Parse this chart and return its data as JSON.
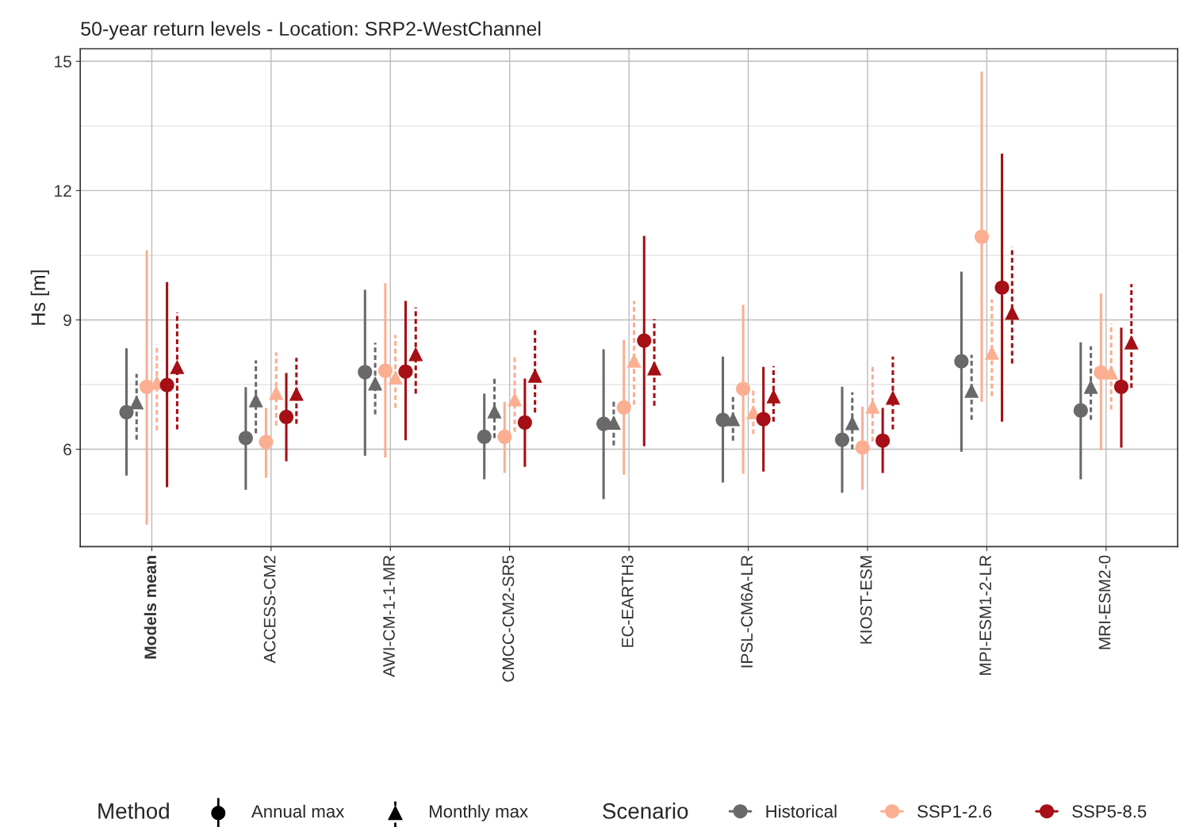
{
  "chart_data": {
    "type": "scatter",
    "title": "50-year return levels - Location: SRP2-WestChannel",
    "ylabel": "Hs [m]",
    "categories": [
      "Models mean",
      "ACCESS-CM2",
      "AWI-CM-1-1-MR",
      "CMCC-CM2-SR5",
      "EC-EARTH3",
      "IPSL-CM6A-LR",
      "KIOST-ESM",
      "MPI-ESM1-2-LR",
      "MRI-ESM2-0"
    ],
    "ylim": [
      3.74,
      15.29
    ],
    "yticks": [
      6,
      9,
      12,
      15
    ],
    "grid": true,
    "legend": "bottom",
    "annotations": [
      "Method",
      "Annual max",
      "Monthly max"
    ],
    "legend_title": "Scenario",
    "series": [
      {
        "name": "Historical",
        "color": "#696969",
        "marker": "circle",
        "line_style": "solid",
        "values": [
          6.86,
          6.26,
          7.79,
          6.29,
          6.59,
          6.68,
          6.22,
          8.04,
          6.9
        ],
        "errors": [
          [
            5.39,
            8.34
          ],
          [
            5.06,
            7.44
          ],
          [
            5.85,
            9.7
          ],
          [
            5.3,
            7.29
          ],
          [
            4.84,
            8.32
          ],
          [
            5.23,
            8.15
          ],
          [
            4.99,
            7.45
          ],
          [
            5.94,
            10.12
          ],
          [
            5.3,
            8.48
          ]
        ]
      },
      {
        "color": "#696969",
        "marker": "triangle",
        "line_style": "dashed",
        "values": [
          7.09,
          7.14,
          7.53,
          6.88,
          6.62,
          6.7,
          6.61,
          7.36,
          7.45
        ],
        "errors": [
          [
            6.22,
            7.75
          ],
          [
            6.37,
            8.06
          ],
          [
            6.81,
            8.47
          ],
          [
            6.26,
            7.66
          ],
          [
            6.09,
            7.16
          ],
          [
            6.2,
            7.27
          ],
          [
            6.0,
            7.32
          ],
          [
            6.68,
            8.19
          ],
          [
            6.68,
            8.39
          ]
        ]
      },
      {
        "name": "SSP1-2.6",
        "color": "#fcae91",
        "marker": "circle",
        "line_style": "solid",
        "values": [
          7.45,
          6.17,
          7.82,
          6.29,
          6.97,
          7.4,
          6.04,
          10.93,
          7.78
        ],
        "errors": [
          [
            4.25,
            10.62
          ],
          [
            5.34,
            6.96
          ],
          [
            5.81,
            9.85
          ],
          [
            5.45,
            7.1
          ],
          [
            5.41,
            8.54
          ],
          [
            5.43,
            9.35
          ],
          [
            5.06,
            6.99
          ],
          [
            7.1,
            14.76
          ],
          [
            5.98,
            9.61
          ]
        ]
      },
      {
        "color": "#fcae91",
        "marker": "triangle",
        "line_style": "dashed",
        "values": [
          7.55,
          7.31,
          7.67,
          7.16,
          8.06,
          6.86,
          6.99,
          8.24,
          7.78
        ],
        "errors": [
          [
            6.44,
            8.43
          ],
          [
            6.55,
            8.25
          ],
          [
            6.96,
            8.65
          ],
          [
            6.4,
            8.15
          ],
          [
            7.03,
            9.44
          ],
          [
            6.35,
            7.38
          ],
          [
            6.18,
            7.95
          ],
          [
            7.23,
            9.48
          ],
          [
            6.92,
            8.91
          ]
        ]
      },
      {
        "name": "SSP5-8.5",
        "color": "#a50f15",
        "marker": "circle",
        "line_style": "solid",
        "values": [
          7.49,
          6.75,
          7.8,
          6.62,
          8.52,
          6.7,
          6.2,
          9.75,
          7.45
        ],
        "errors": [
          [
            5.12,
            9.88
          ],
          [
            5.72,
            7.77
          ],
          [
            6.21,
            9.44
          ],
          [
            5.59,
            7.64
          ],
          [
            6.07,
            10.95
          ],
          [
            5.48,
            7.91
          ],
          [
            5.45,
            6.96
          ],
          [
            6.64,
            12.86
          ],
          [
            6.04,
            8.82
          ]
        ]
      },
      {
        "color": "#a50f15",
        "marker": "triangle",
        "line_style": "dashed",
        "values": [
          7.91,
          7.29,
          8.21,
          7.71,
          7.88,
          7.23,
          7.2,
          9.17,
          8.48
        ],
        "errors": [
          [
            6.46,
            9.17
          ],
          [
            6.59,
            8.12
          ],
          [
            7.29,
            9.29
          ],
          [
            6.85,
            8.78
          ],
          [
            7.01,
            9.02
          ],
          [
            6.64,
            7.93
          ],
          [
            6.46,
            8.15
          ],
          [
            7.99,
            10.69
          ],
          [
            7.42,
            9.83
          ]
        ]
      }
    ]
  }
}
